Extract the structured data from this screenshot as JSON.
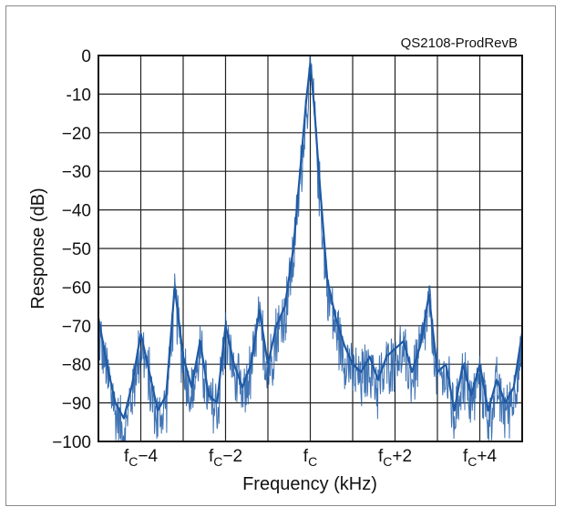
{
  "chart_data": {
    "type": "line",
    "title": "",
    "annotation": "QS2108-ProdRevB",
    "xlabel": "Frequency (kHz)",
    "ylabel": "Response (dB)",
    "xlim": [
      -5,
      5
    ],
    "ylim": [
      -100,
      0
    ],
    "grid": true,
    "series_color": "#1f5aa6",
    "x_ticks": [
      {
        "value": -4,
        "base": "f",
        "sub": "C",
        "suffix": "−4"
      },
      {
        "value": -2,
        "base": "f",
        "sub": "C",
        "suffix": "−2"
      },
      {
        "value": 0,
        "base": "f",
        "sub": "C",
        "suffix": ""
      },
      {
        "value": 2,
        "base": "f",
        "sub": "C",
        "suffix": "+2"
      },
      {
        "value": 4,
        "base": "f",
        "sub": "C",
        "suffix": "+4"
      }
    ],
    "y_ticks": [
      {
        "value": 0,
        "label": "0"
      },
      {
        "value": -10,
        "label": "-10"
      },
      {
        "value": -20,
        "label": "−20"
      },
      {
        "value": -30,
        "label": "−30"
      },
      {
        "value": -40,
        "label": "−40"
      },
      {
        "value": -50,
        "label": "−50"
      },
      {
        "value": -60,
        "label": "−60"
      },
      {
        "value": -70,
        "label": "−70"
      },
      {
        "value": -80,
        "label": "−80"
      },
      {
        "value": -90,
        "label": "−90"
      },
      {
        "value": -100,
        "label": "−100"
      }
    ],
    "series": [
      {
        "x": [
          -5.0,
          -4.8,
          -4.6,
          -4.4,
          -4.2,
          -4.0,
          -3.8,
          -3.6,
          -3.4,
          -3.2,
          -3.0,
          -2.8,
          -2.6,
          -2.4,
          -2.2,
          -2.0,
          -1.8,
          -1.6,
          -1.4,
          -1.2,
          -1.0,
          -0.8,
          -0.6,
          -0.4,
          -0.2,
          -0.1,
          0.0,
          0.1,
          0.2,
          0.4,
          0.6,
          0.8,
          1.0,
          1.2,
          1.4,
          1.6,
          1.8,
          2.0,
          2.2,
          2.4,
          2.6,
          2.8,
          3.0,
          3.2,
          3.4,
          3.6,
          3.8,
          4.0,
          4.2,
          4.4,
          4.6,
          4.8,
          5.0
        ],
        "y": [
          -68,
          -80,
          -90,
          -94,
          -85,
          -72,
          -82,
          -92,
          -88,
          -60,
          -78,
          -86,
          -74,
          -88,
          -90,
          -70,
          -80,
          -86,
          -80,
          -66,
          -80,
          -70,
          -65,
          -50,
          -25,
          -12,
          -2,
          -14,
          -30,
          -58,
          -68,
          -75,
          -80,
          -82,
          -78,
          -84,
          -78,
          -76,
          -74,
          -82,
          -75,
          -62,
          -82,
          -80,
          -92,
          -80,
          -88,
          -80,
          -92,
          -84,
          -90,
          -86,
          -72
        ]
      }
    ]
  }
}
